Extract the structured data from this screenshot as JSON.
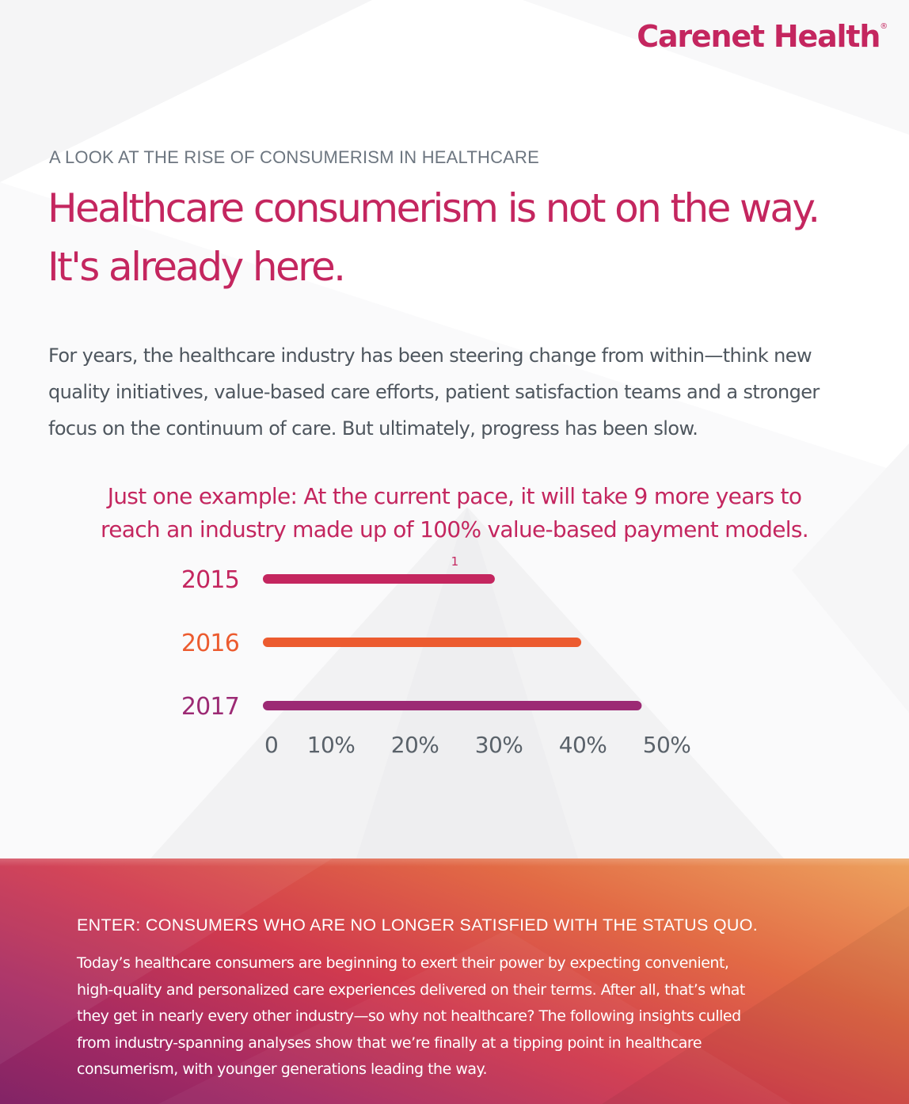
{
  "brand": {
    "logo_text": "Carenet Health",
    "registered_mark": "®",
    "colors": {
      "magenta": "#c4265f",
      "orange": "#ec5b2f",
      "purple": "#9c2a74",
      "gray_text": "#4e565e"
    }
  },
  "header": {
    "eyebrow": "A LOOK AT THE RISE OF CONSUMERISM IN HEALTHCARE",
    "headline_lines": [
      "Healthcare consumerism is not on the way.",
      "It's already here."
    ]
  },
  "intro": {
    "lines": [
      "For years, the healthcare industry has been steering change from within—think new",
      "quality initiatives, value-based care efforts, patient satisfaction teams and a stronger",
      "focus on the continuum of care. But ultimately, progress has been slow."
    ]
  },
  "callout": {
    "lines": [
      "Just one example: At the current pace, it will take 9 more years to",
      "reach an industry made up of 100% value-based payment models."
    ],
    "footnote": "1"
  },
  "chart_data": {
    "type": "bar",
    "orientation": "horizontal",
    "categories": [
      "2015",
      "2016",
      "2017"
    ],
    "values": [
      26.5,
      36.8,
      44
    ],
    "unit": "%",
    "xlim": [
      0,
      50
    ],
    "xticks": [
      "0",
      "10%",
      "20%",
      "30%",
      "40%",
      "50%"
    ],
    "xtick_values": [
      0,
      10,
      20,
      30,
      40,
      50
    ],
    "colors": [
      "#c4265f",
      "#ec5b2f",
      "#9c2a74"
    ],
    "grid": false,
    "legend": "none"
  },
  "consumers": {
    "title": "ENTER: CONSUMERS WHO ARE NO LONGER SATISFIED WITH THE STATUS QUO.",
    "body_lines": [
      "Today’s healthcare consumers are beginning to exert their power by expecting convenient,",
      "high-quality and personalized care experiences delivered on their terms. After all, that’s what",
      "they get in nearly every other industry—so why not healthcare? The following insights culled",
      "from industry-spanning analyses show that we’re finally at a tipping point in healthcare",
      "consumerism, with younger generations leading the way."
    ]
  }
}
